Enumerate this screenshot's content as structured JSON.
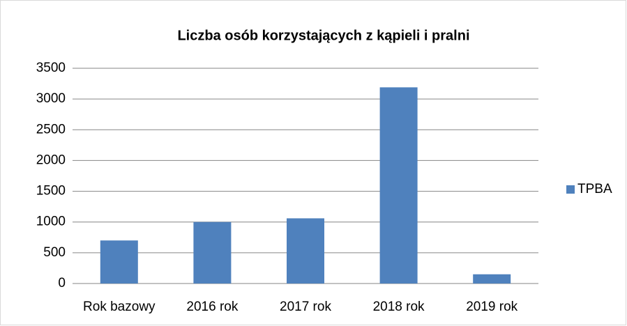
{
  "chart_data": {
    "type": "bar",
    "title": "Liczba osób korzystających z kąpieli i pralni",
    "categories": [
      "Rok bazowy",
      "2016 rok",
      "2017 rok",
      "2018 rok",
      "2019 rok"
    ],
    "series": [
      {
        "name": "TPBA",
        "color": "#4f81bd",
        "values": [
          700,
          1000,
          1060,
          3190,
          150
        ]
      }
    ],
    "ylim": [
      0,
      3500
    ],
    "yticks": [
      0,
      500,
      1000,
      1500,
      2000,
      2500,
      3000,
      3500
    ],
    "grid": true,
    "legend": "right"
  }
}
